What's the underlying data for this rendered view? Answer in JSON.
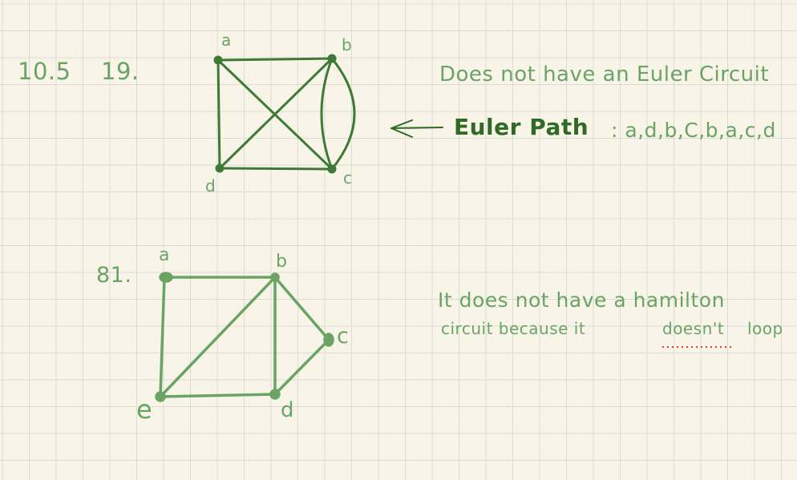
{
  "section_number": "10.5",
  "problems": [
    {
      "number": "19.",
      "vertex_labels": [
        "a",
        "b",
        "c",
        "d"
      ],
      "statement": "Does not have an Euler Circuit",
      "path_label": "Euler Path",
      "path_sequence": ": a,d,b,C,b,a,c,d"
    },
    {
      "number": "81.",
      "vertex_labels": [
        "a",
        "b",
        "c",
        "d",
        "e"
      ],
      "statement_line1": "It does not have a hamilton",
      "statement_line2_a": "circuit because it",
      "statement_line2_b": "doesn't",
      "statement_line2_c": "loop"
    }
  ],
  "colors": {
    "paper": "#f8f5e8",
    "grid_line": "#dcdcd6",
    "ink_light": "#6aa465",
    "ink_dark": "#2f6b26",
    "spellcheck": "#e53935"
  },
  "icons": {
    "arrow": "left-arrow-icon"
  }
}
